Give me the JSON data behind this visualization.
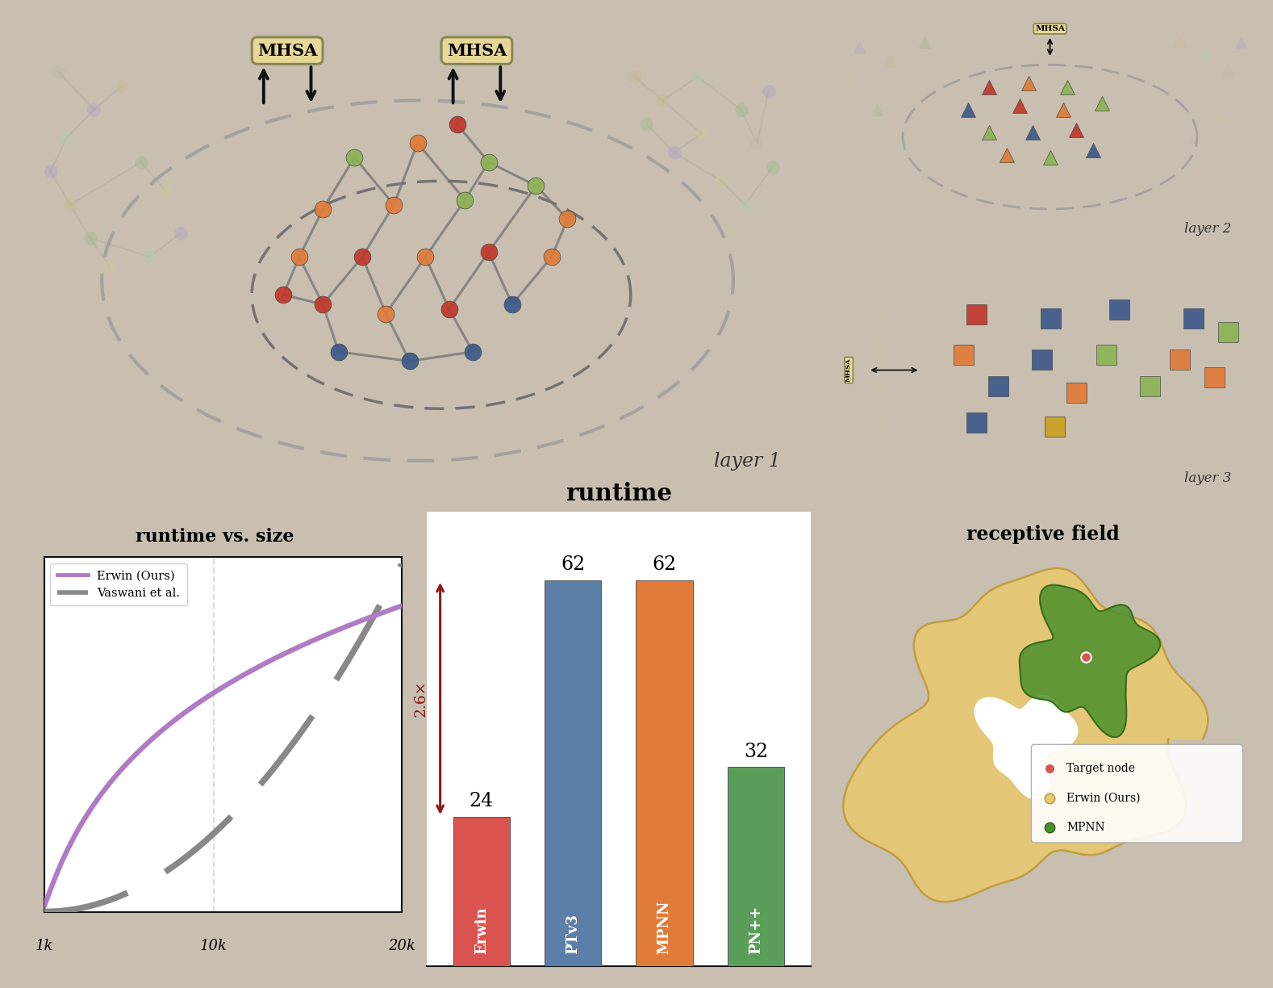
{
  "bg_color": "#c8bfb0",
  "panel_bg_cream": "#f5f0e4",
  "panel_bg_white": "#ffffff",
  "title_runtime_vs_size": "runtime vs. size",
  "title_runtime": "runtime",
  "title_receptive": "receptive field",
  "title_layer1": "layer 1",
  "title_layer2": "layer 2",
  "title_layer3": "layer 3",
  "bar_labels": [
    "Erwin",
    "PTv3",
    "MPNN",
    "PN++"
  ],
  "bar_values": [
    24,
    62,
    62,
    32
  ],
  "bar_colors": [
    "#d9534f",
    "#5b7fa6",
    "#e07b39",
    "#5a9e5a"
  ],
  "erwin_line_color": "#b07bc4",
  "vaswani_line_color": "#888888",
  "arrow_color": "#8b1a1a",
  "mhsa_bg": "#e8d898",
  "mhsa_edge": "#888855",
  "node_colors": [
    "#c0392b",
    "#e07b39",
    "#8db255",
    "#3d5a8a",
    "#c8a020"
  ],
  "faded_node_colors": [
    "#b0a8c0",
    "#c8b898",
    "#a8b890",
    "#c8c8a0",
    "#b8c8b0",
    "#c0b8a8"
  ],
  "legend_label_erwin": "Erwin (Ours)",
  "legend_label_vaswani": "Vaswani et al.",
  "target_node_color": "#d9534f",
  "erwin_blob_color": "#e8c870",
  "mpnn_color": "#4a8f2a",
  "spine_color": "#111111",
  "spine_lw": 2.5
}
